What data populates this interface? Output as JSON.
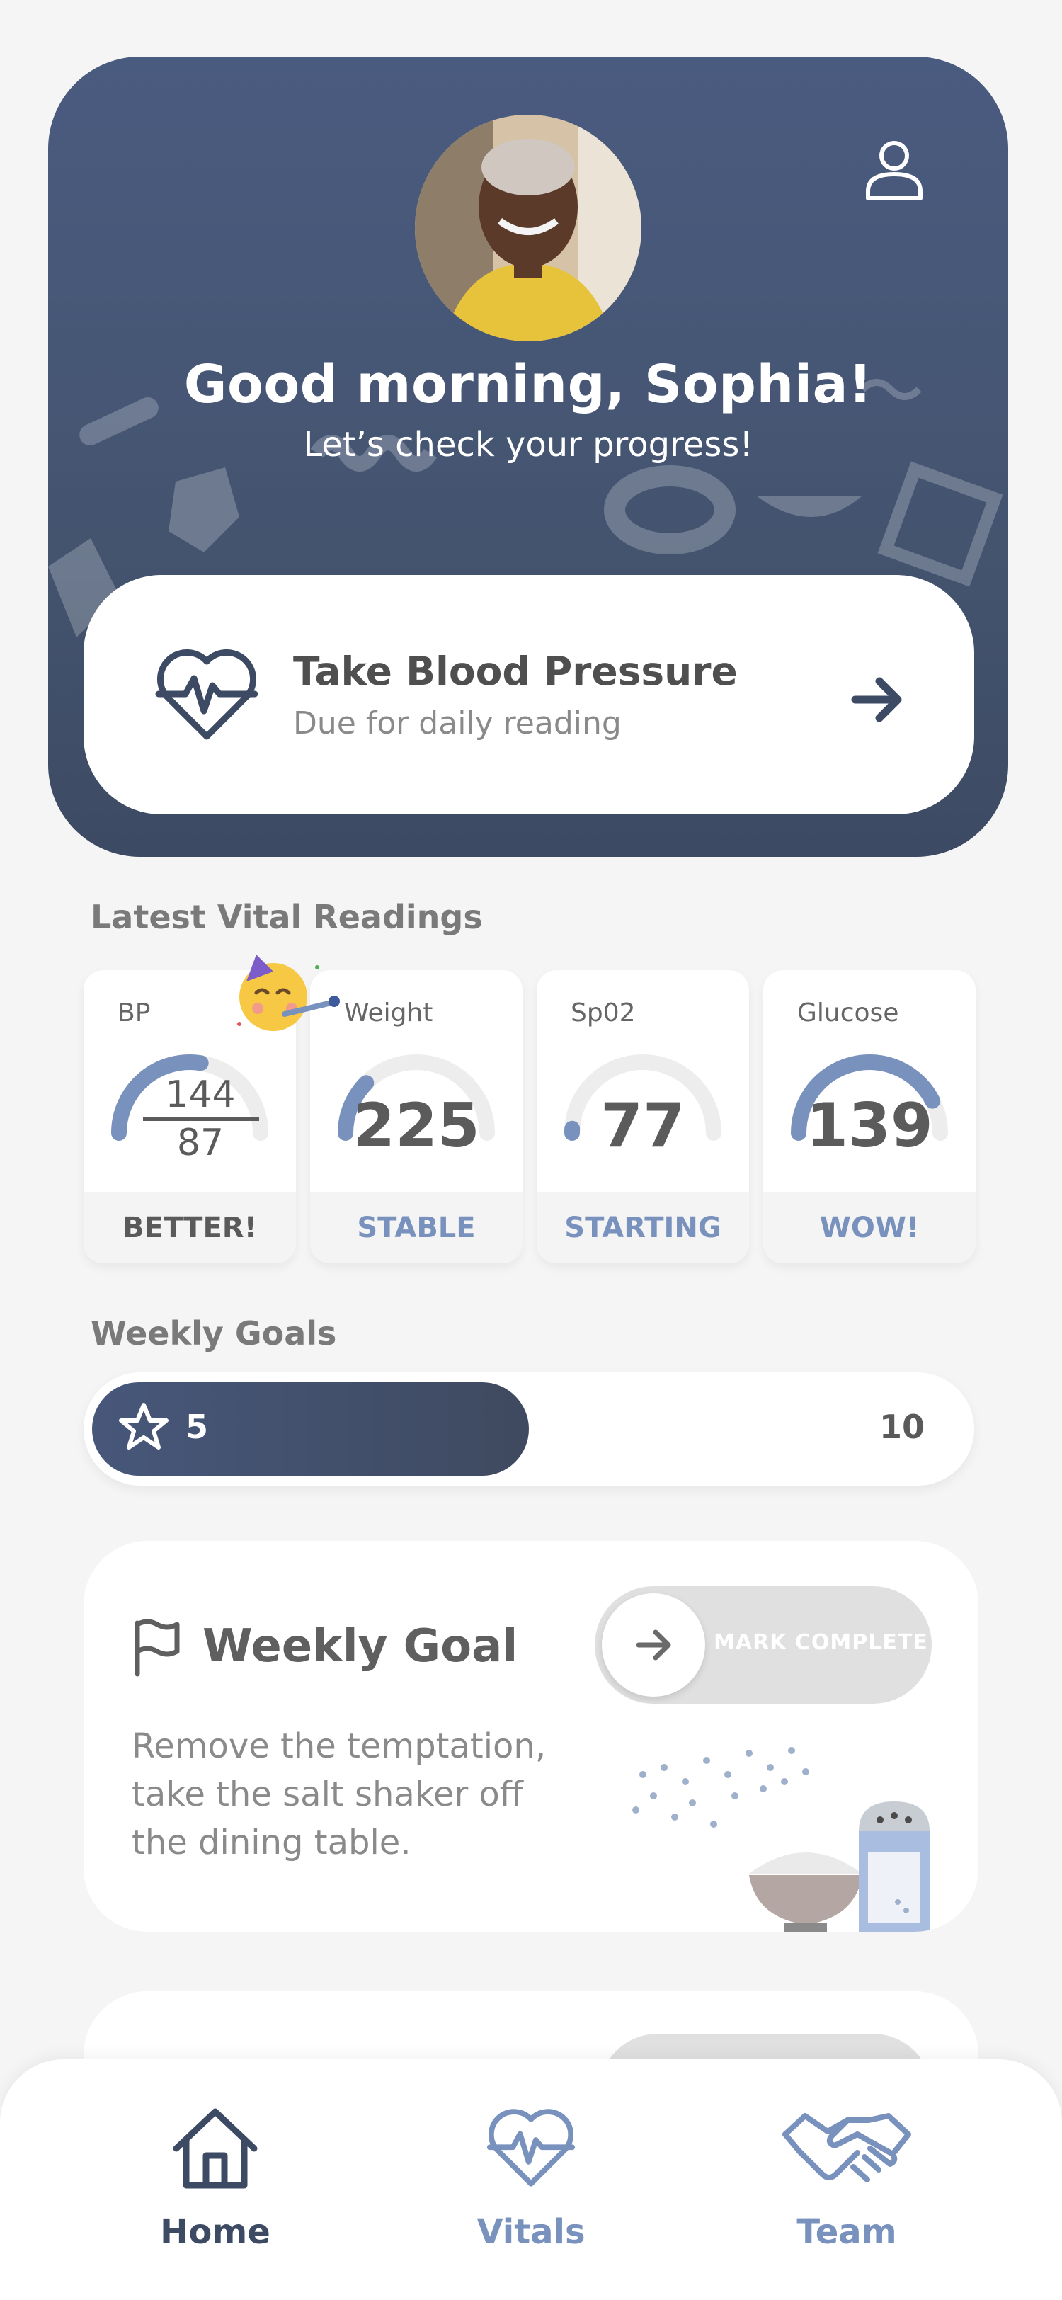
{
  "colors": {
    "hero_bg": "#465677",
    "accent_blue": "#7891bd",
    "dark_navy": "#3f4a62",
    "better_text": "#5a5a5a"
  },
  "header": {
    "greeting": "Good morning, Sophia!",
    "subtitle": "Let’s check your progress!",
    "profile_icon": "person-icon",
    "avatar_desc": "user-avatar"
  },
  "task": {
    "title": "Take Blood Pressure",
    "subtitle": "Due for daily reading",
    "icon": "heart-pulse-icon",
    "action_icon": "arrow-right-icon"
  },
  "vitals": {
    "section_title": "Latest Vital Readings",
    "celebration_icon": "party-face-emoji",
    "items": [
      {
        "name": "BP",
        "systolic": "144",
        "diastolic": "87",
        "status": "BETTER!",
        "progress": 0.55
      },
      {
        "name": "Weight",
        "value": "225",
        "status": "STABLE",
        "progress": 0.25
      },
      {
        "name": "Sp02",
        "value": "77",
        "status": "STARTING",
        "progress": 0.02
      },
      {
        "name": "Glucose",
        "value": "139",
        "status": "WOW!",
        "progress": 0.85
      }
    ]
  },
  "weekly_goals": {
    "section_title": "Weekly Goals",
    "current": "5",
    "target": "10",
    "progress": 0.5
  },
  "goal_card": {
    "title": "Weekly Goal",
    "toggle_label": "MARK COMPLETE",
    "description_lines": [
      "Remove the temptation,",
      "take the salt shaker off",
      "the dining table."
    ]
  },
  "nav": {
    "items": [
      {
        "label": "Home",
        "icon": "house-icon",
        "active": true
      },
      {
        "label": "Vitals",
        "icon": "heart-pulse-icon",
        "active": false
      },
      {
        "label": "Team",
        "icon": "handshake-icon",
        "active": false
      }
    ]
  }
}
